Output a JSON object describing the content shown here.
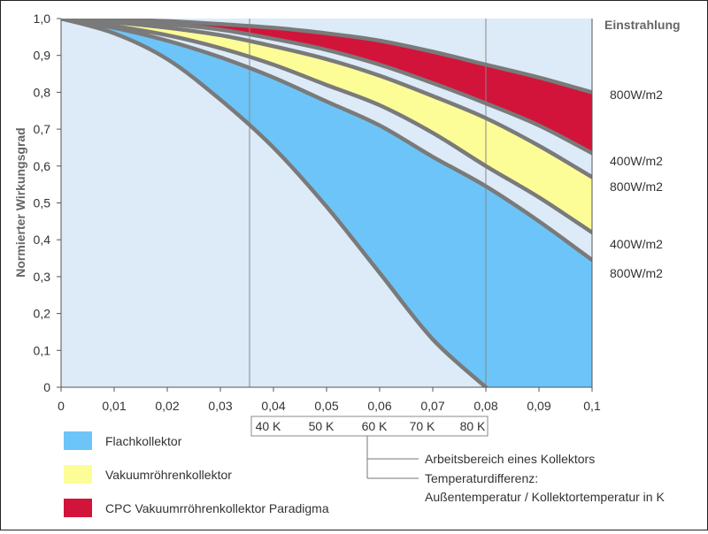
{
  "chart_data": {
    "type": "area",
    "title": "",
    "xlabel": "",
    "ylabel": "Normierter Wirkungsgrad",
    "xlim": [
      0,
      0.1
    ],
    "ylim": [
      0,
      1.0
    ],
    "x_ticks": [
      "0",
      "0,01",
      "0,02",
      "0,03",
      "0,04",
      "0,05",
      "0,06",
      "0,07",
      "0,08",
      "0,09",
      "0,1"
    ],
    "y_ticks": [
      "0",
      "0,1",
      "0,2",
      "0,3",
      "0,4",
      "0,5",
      "0,6",
      "0,7",
      "0,8",
      "0,9",
      "1,0"
    ],
    "grid": {
      "vertical_x": [
        0.0355,
        0.08
      ]
    },
    "colors": {
      "plot_bg": "#dcebf7",
      "flach": "#6dc4f8",
      "vakuum": "#fdfd98",
      "cpc": "#d2143a",
      "curve": "#7a7a7a"
    },
    "series": [
      {
        "key": "flach_400",
        "x": [
          0,
          0.01,
          0.02,
          0.03,
          0.04,
          0.05,
          0.06,
          0.07,
          0.08
        ],
        "y": [
          1.0,
          0.96,
          0.89,
          0.78,
          0.65,
          0.49,
          0.31,
          0.13,
          0.0
        ]
      },
      {
        "key": "flach_800",
        "x": [
          0,
          0.01,
          0.02,
          0.03,
          0.04,
          0.05,
          0.06,
          0.07,
          0.08,
          0.09,
          0.1
        ],
        "y": [
          1.0,
          0.975,
          0.94,
          0.895,
          0.84,
          0.775,
          0.71,
          0.625,
          0.545,
          0.45,
          0.345
        ]
      },
      {
        "key": "vakuum_400",
        "x": [
          0,
          0.01,
          0.02,
          0.03,
          0.04,
          0.05,
          0.06,
          0.07,
          0.08,
          0.09,
          0.1
        ],
        "y": [
          1.0,
          0.98,
          0.955,
          0.92,
          0.875,
          0.82,
          0.765,
          0.69,
          0.6,
          0.515,
          0.42
        ]
      },
      {
        "key": "vakuum_800",
        "x": [
          0,
          0.01,
          0.02,
          0.03,
          0.04,
          0.05,
          0.06,
          0.07,
          0.08,
          0.09,
          0.1
        ],
        "y": [
          1.0,
          0.99,
          0.975,
          0.955,
          0.925,
          0.89,
          0.845,
          0.79,
          0.73,
          0.655,
          0.57
        ]
      },
      {
        "key": "cpc_400",
        "x": [
          0,
          0.01,
          0.02,
          0.03,
          0.04,
          0.05,
          0.06,
          0.07,
          0.08,
          0.09,
          0.1
        ],
        "y": [
          1.0,
          0.995,
          0.985,
          0.97,
          0.945,
          0.915,
          0.875,
          0.825,
          0.77,
          0.71,
          0.635
        ]
      },
      {
        "key": "cpc_800",
        "x": [
          0,
          0.01,
          0.02,
          0.03,
          0.04,
          0.05,
          0.06,
          0.07,
          0.08,
          0.09,
          0.1
        ],
        "y": [
          1.0,
          0.997,
          0.993,
          0.985,
          0.975,
          0.96,
          0.94,
          0.91,
          0.875,
          0.84,
          0.8
        ]
      }
    ],
    "fills": [
      {
        "name": "Flachkollektor",
        "upper": "flach_800",
        "lower": "flach_400",
        "color": "#6dc4f8"
      },
      {
        "name": "Vakuumröhrenkollektor",
        "upper": "vakuum_800",
        "lower": "vakuum_400",
        "color": "#fdfd98"
      },
      {
        "name": "CPC Vakuumrröhrenkollektor Paradigma",
        "upper": "cpc_800",
        "lower": "cpc_400",
        "color": "#d2143a"
      }
    ],
    "right_labels": {
      "header": "Einstrahlung",
      "items": [
        {
          "text": "800W/m2",
          "series": "cpc_800"
        },
        {
          "text": "400W/m2",
          "series": "cpc_400"
        },
        {
          "text": "800W/m2",
          "series": "vakuum_800"
        },
        {
          "text": "400W/m2",
          "series": "vakuum_400"
        },
        {
          "text": "800W/m2",
          "series": "flach_800"
        }
      ]
    },
    "kelvin_scale": [
      {
        "label": "40 K",
        "x": 0.039
      },
      {
        "label": "50 K",
        "x": 0.049
      },
      {
        "label": "60 K",
        "x": 0.059
      },
      {
        "label": "70 K",
        "x": 0.068
      },
      {
        "label": "80 K",
        "x": 0.0775
      }
    ],
    "legend": [
      {
        "label": "Flachkollektor",
        "color": "#6dc4f8"
      },
      {
        "label": "Vakuumröhrenkollektor",
        "color": "#fdfd98"
      },
      {
        "label": "CPC Vakuumrröhrenkollektor Paradigma",
        "color": "#d2143a"
      }
    ],
    "annotations": [
      "Arbeitsbereich eines Kollektors",
      "Temperaturdifferenz:",
      "Außentemperatur / Kollektortemperatur in K"
    ]
  }
}
